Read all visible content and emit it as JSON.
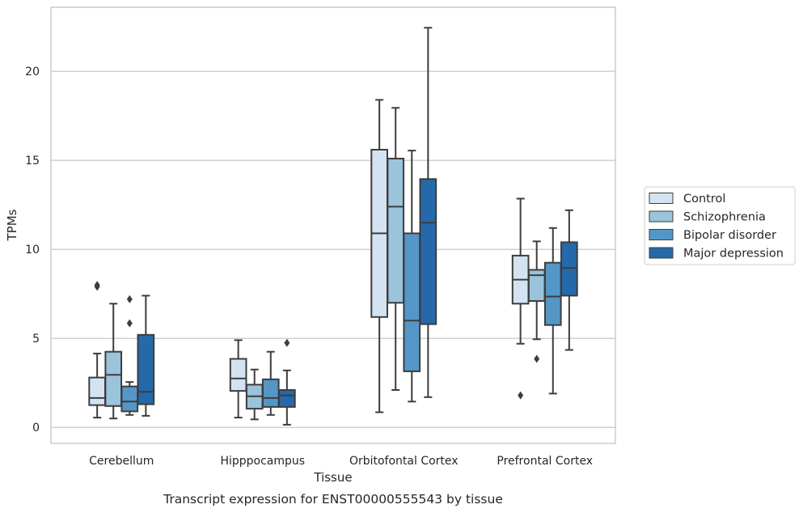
{
  "chart_data": {
    "type": "box",
    "caption": "Transcript expression for ENST00000555543 by tissue",
    "xlabel": "Tissue",
    "ylabel": "TPMs",
    "ylim": [
      -0.9,
      23.6
    ],
    "yticks": [
      0,
      5,
      10,
      15,
      20
    ],
    "grid": true,
    "legend_position": "right-center",
    "categories": [
      "Cerebellum",
      "Hipppocampus",
      "Orbitofontal Cortex",
      "Prefrontal Cortex"
    ],
    "series": [
      {
        "name": "Control",
        "color": "#d4e3f2",
        "boxes": [
          {
            "whisker_low": 0.55,
            "q1": 1.25,
            "median": 1.65,
            "q3": 2.8,
            "whisker_high": 4.15,
            "outliers": [
              7.9,
              8.0
            ]
          },
          {
            "whisker_low": 0.55,
            "q1": 2.05,
            "median": 2.75,
            "q3": 3.85,
            "whisker_high": 4.9,
            "outliers": []
          },
          {
            "whisker_low": 0.85,
            "q1": 6.2,
            "median": 10.9,
            "q3": 15.6,
            "whisker_high": 18.4,
            "outliers": []
          },
          {
            "whisker_low": 4.7,
            "q1": 6.95,
            "median": 8.3,
            "q3": 9.65,
            "whisker_high": 12.85,
            "outliers": [
              1.8
            ]
          }
        ]
      },
      {
        "name": "Schizophrenia",
        "color": "#9ac3dc",
        "boxes": [
          {
            "whisker_low": 0.5,
            "q1": 1.2,
            "median": 2.95,
            "q3": 4.25,
            "whisker_high": 6.95,
            "outliers": []
          },
          {
            "whisker_low": 0.45,
            "q1": 1.05,
            "median": 1.75,
            "q3": 2.4,
            "whisker_high": 3.25,
            "outliers": []
          },
          {
            "whisker_low": 2.1,
            "q1": 7.0,
            "median": 12.4,
            "q3": 15.1,
            "whisker_high": 17.95,
            "outliers": []
          },
          {
            "whisker_low": 4.95,
            "q1": 7.1,
            "median": 8.55,
            "q3": 8.85,
            "whisker_high": 10.45,
            "outliers": [
              3.85
            ]
          }
        ]
      },
      {
        "name": "Bipolar disorder",
        "color": "#5497c7",
        "boxes": [
          {
            "whisker_low": 0.7,
            "q1": 0.9,
            "median": 1.45,
            "q3": 2.3,
            "whisker_high": 2.55,
            "outliers": [
              5.85,
              7.2
            ]
          },
          {
            "whisker_low": 0.7,
            "q1": 1.15,
            "median": 1.65,
            "q3": 2.7,
            "whisker_high": 4.25,
            "outliers": []
          },
          {
            "whisker_low": 1.45,
            "q1": 3.15,
            "median": 6.0,
            "q3": 10.9,
            "whisker_high": 15.55,
            "outliers": []
          },
          {
            "whisker_low": 1.9,
            "q1": 5.75,
            "median": 7.35,
            "q3": 9.25,
            "whisker_high": 11.2,
            "outliers": []
          }
        ]
      },
      {
        "name": "Major depression",
        "color": "#2669aa",
        "boxes": [
          {
            "whisker_low": 0.65,
            "q1": 1.3,
            "median": 2.0,
            "q3": 5.2,
            "whisker_high": 7.4,
            "outliers": []
          },
          {
            "whisker_low": 0.15,
            "q1": 1.15,
            "median": 1.8,
            "q3": 2.1,
            "whisker_high": 3.2,
            "outliers": [
              4.75
            ]
          },
          {
            "whisker_low": 1.7,
            "q1": 5.8,
            "median": 11.5,
            "q3": 13.95,
            "whisker_high": 22.45,
            "outliers": []
          },
          {
            "whisker_low": 4.35,
            "q1": 7.4,
            "median": 8.95,
            "q3": 10.4,
            "whisker_high": 12.2,
            "outliers": []
          }
        ]
      }
    ]
  }
}
